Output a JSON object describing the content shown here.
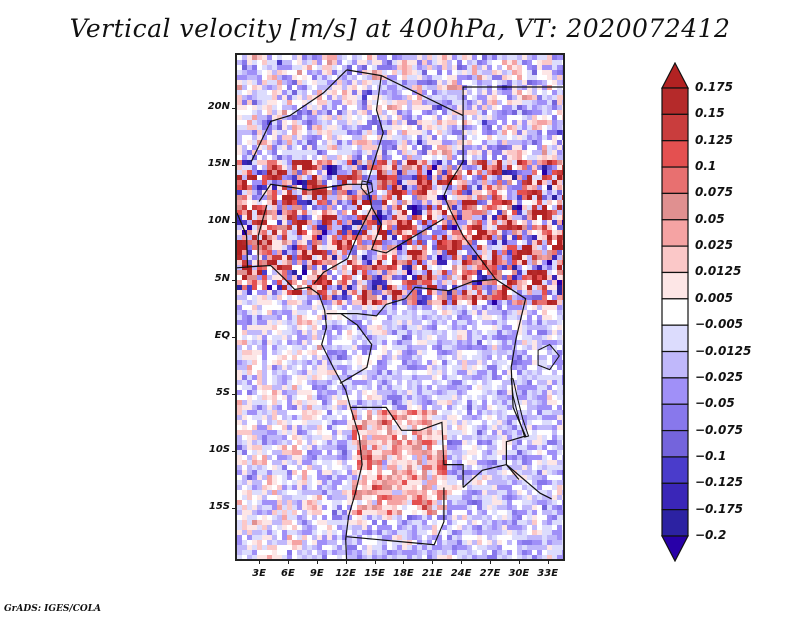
{
  "title": "Vertical velocity [m/s] at 400hPa, VT: 2020072412",
  "footer": "GrADS: IGES/COLA",
  "map": {
    "variable": "Vertical velocity",
    "units": "m/s",
    "level": "400hPa",
    "valid_time": "2020072412",
    "region": "Central Africa",
    "lat_labels": [
      "20N",
      "15N",
      "10N",
      "5N",
      "EQ",
      "5S",
      "10S",
      "15S"
    ],
    "lat_values": [
      20,
      15,
      10,
      5,
      0,
      -5,
      -10,
      -15
    ],
    "lon_labels": [
      "3E",
      "6E",
      "9E",
      "12E",
      "15E",
      "18E",
      "21E",
      "24E",
      "27E",
      "30E",
      "33E"
    ],
    "lon_values": [
      3,
      6,
      9,
      12,
      15,
      18,
      21,
      24,
      27,
      30,
      33
    ],
    "lon_range": [
      0.5,
      34.8
    ],
    "lat_range": [
      -19.6,
      24.8
    ],
    "features": [
      "coastlines",
      "country-borders",
      "lakes"
    ],
    "pattern_summary": "Strong mixed upward (red) / downward (blue) motion across the Sahel belt 3N-16N; weaker mostly negative values over the Atlantic and Congo basin; moderate upward motion over interior Angola."
  },
  "colorbar": {
    "orientation": "vertical",
    "extend": "both",
    "labels": [
      "0.175",
      "0.15",
      "0.125",
      "0.1",
      "0.075",
      "0.05",
      "0.025",
      "0.0125",
      "0.005",
      "-0.005",
      "-0.0125",
      "-0.025",
      "-0.05",
      "-0.075",
      "-0.1",
      "-0.125",
      "-0.175",
      "-0.2"
    ],
    "colors": [
      "#b22222",
      "#b52a2a",
      "#c93d3d",
      "#e45050",
      "#e87070",
      "#e09090",
      "#f5a3a3",
      "#fbc8c8",
      "#fde6e6",
      "#ffffff",
      "#dcdcfd",
      "#c0b8fb",
      "#a090f8",
      "#8878ec",
      "#7464dc",
      "#4a3ccb",
      "#3a26b8",
      "#2c22a2",
      "#2800a8"
    ]
  }
}
